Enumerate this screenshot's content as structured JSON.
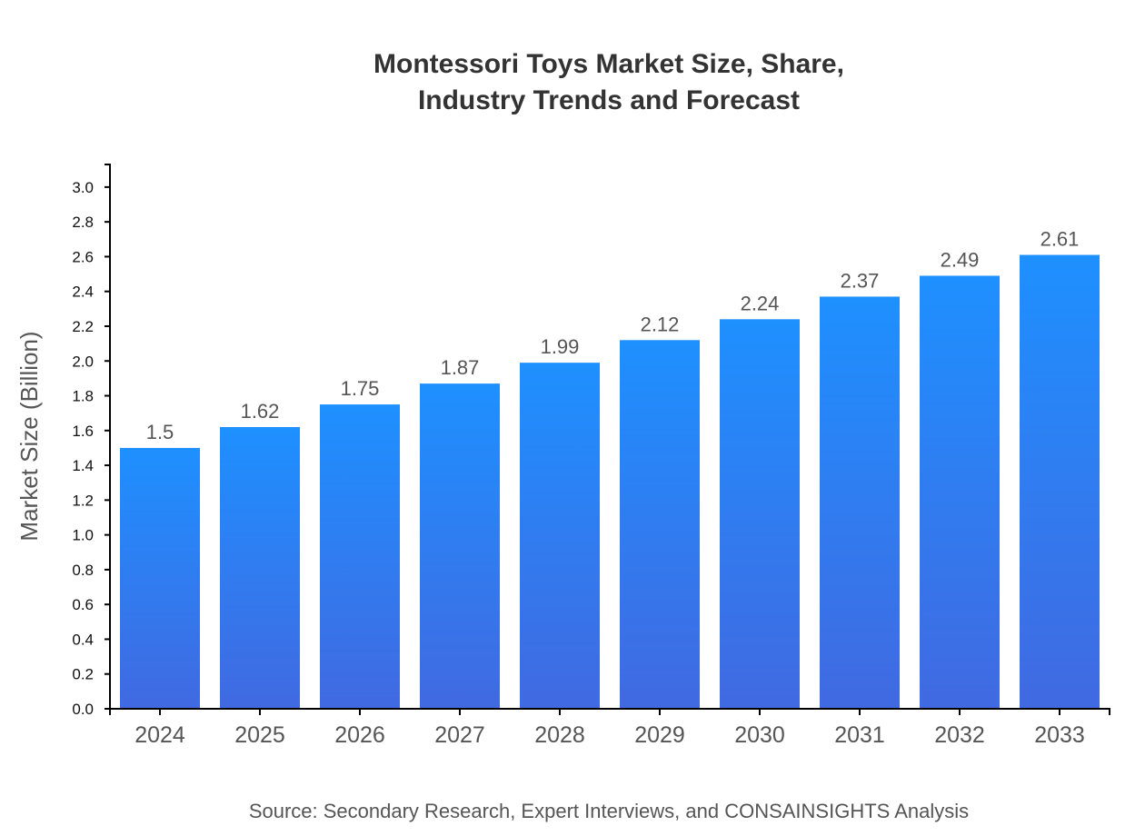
{
  "chart_data": {
    "type": "bar",
    "title_lines": [
      "Montessori Toys Market Size, Share,",
      "Industry Trends and Forecast"
    ],
    "xlabel": "",
    "ylabel": "Market Size (Billion)",
    "categories": [
      "2024",
      "2025",
      "2026",
      "2027",
      "2028",
      "2029",
      "2030",
      "2031",
      "2032",
      "2033"
    ],
    "values": [
      1.5,
      1.62,
      1.75,
      1.87,
      1.99,
      2.12,
      2.24,
      2.37,
      2.49,
      2.61
    ],
    "data_labels": [
      "1.5",
      "1.62",
      "1.75",
      "1.87",
      "1.99",
      "2.12",
      "2.24",
      "2.37",
      "2.49",
      "2.61"
    ],
    "yticks": [
      "0.0",
      "0.2",
      "0.4",
      "0.6",
      "0.8",
      "1.0",
      "1.2",
      "1.4",
      "1.6",
      "1.8",
      "2.0",
      "2.2",
      "2.4",
      "2.6",
      "2.8",
      "3.0"
    ],
    "ylim": [
      0,
      3.13
    ],
    "grid": false,
    "legend": "none",
    "colors": {
      "bar_top": "#1e90ff",
      "bar_bottom": "#4169e1"
    },
    "source": "Source: Secondary Research, Expert Interviews, and CONSAINSIGHTS Analysis"
  }
}
